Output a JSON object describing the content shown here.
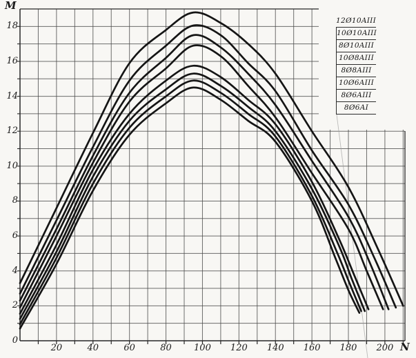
{
  "figure": {
    "paper_color": "#f8f7f4",
    "ink_color": "#151515",
    "grid_color": "#4a4a4a",
    "border_color": "#262626"
  },
  "chart_data": {
    "type": "line",
    "title": "",
    "xlabel": "N",
    "ylabel": "M",
    "xlim": [
      0,
      211
    ],
    "ylim": [
      0,
      19
    ],
    "x_tick_labels": [
      20,
      40,
      60,
      80,
      100,
      120,
      140,
      160,
      180,
      200
    ],
    "y_tick_labels": [
      0,
      2,
      4,
      6,
      8,
      10,
      12,
      14,
      16,
      18
    ],
    "x_minor_step": 10,
    "y_minor_step": 1,
    "grid": true,
    "legend_position": "top-right",
    "series": [
      {
        "name": "12Ø10AIII",
        "points": [
          [
            0,
            3.3
          ],
          [
            20,
            7.6
          ],
          [
            40,
            11.9
          ],
          [
            60,
            15.9
          ],
          [
            80,
            17.8
          ],
          [
            95,
            18.8
          ],
          [
            110,
            18.2
          ],
          [
            125,
            17.0
          ],
          [
            140,
            15.3
          ],
          [
            160,
            12.0
          ],
          [
            180,
            8.8
          ],
          [
            196,
            5.3
          ],
          [
            210,
            2.0
          ]
        ]
      },
      {
        "name": "10Ø10AIII",
        "points": [
          [
            0,
            2.7
          ],
          [
            20,
            6.9
          ],
          [
            40,
            11.1
          ],
          [
            60,
            14.9
          ],
          [
            80,
            16.9
          ],
          [
            95,
            18.05
          ],
          [
            110,
            17.5
          ],
          [
            125,
            15.9
          ],
          [
            140,
            14.3
          ],
          [
            160,
            10.9
          ],
          [
            180,
            7.8
          ],
          [
            194,
            4.8
          ],
          [
            206,
            1.9
          ]
        ]
      },
      {
        "name": "8Ø10AIII",
        "points": [
          [
            0,
            2.3
          ],
          [
            20,
            6.4
          ],
          [
            40,
            10.6
          ],
          [
            60,
            14.2
          ],
          [
            80,
            16.2
          ],
          [
            95,
            17.5
          ],
          [
            110,
            16.8
          ],
          [
            125,
            15.3
          ],
          [
            140,
            13.5
          ],
          [
            160,
            10.3
          ],
          [
            180,
            7.1
          ],
          [
            192,
            4.4
          ],
          [
            202,
            1.8
          ]
        ]
      },
      {
        "name": "10Ø8AIII",
        "points": [
          [
            0,
            1.9
          ],
          [
            20,
            6.0
          ],
          [
            40,
            10.2
          ],
          [
            60,
            13.7
          ],
          [
            80,
            15.6
          ],
          [
            95,
            16.9
          ],
          [
            110,
            16.3
          ],
          [
            125,
            14.6
          ],
          [
            140,
            12.8
          ],
          [
            160,
            9.6
          ],
          [
            180,
            6.4
          ],
          [
            190,
            4.0
          ],
          [
            199,
            1.8
          ]
        ]
      },
      {
        "name": "8Ø8AIII",
        "points": [
          [
            0,
            1.55
          ],
          [
            20,
            5.5
          ],
          [
            40,
            9.8
          ],
          [
            60,
            13.0
          ],
          [
            80,
            14.9
          ],
          [
            95,
            15.75
          ],
          [
            110,
            15.1
          ],
          [
            125,
            13.8
          ],
          [
            140,
            12.4
          ],
          [
            160,
            9.1
          ],
          [
            175,
            5.8
          ],
          [
            183,
            3.8
          ],
          [
            191,
            1.8
          ]
        ]
      },
      {
        "name": "10Ø6AIII",
        "points": [
          [
            0,
            1.25
          ],
          [
            20,
            5.1
          ],
          [
            40,
            9.4
          ],
          [
            60,
            12.6
          ],
          [
            80,
            14.4
          ],
          [
            95,
            15.3
          ],
          [
            110,
            14.6
          ],
          [
            125,
            13.4
          ],
          [
            140,
            12.0
          ],
          [
            160,
            8.7
          ],
          [
            175,
            5.4
          ],
          [
            182,
            3.5
          ],
          [
            189,
            1.7
          ]
        ]
      },
      {
        "name": "8Ø6AIII",
        "points": [
          [
            0,
            0.95
          ],
          [
            20,
            4.75
          ],
          [
            40,
            9.0
          ],
          [
            60,
            12.2
          ],
          [
            80,
            14.0
          ],
          [
            95,
            14.9
          ],
          [
            110,
            14.2
          ],
          [
            125,
            13.0
          ],
          [
            140,
            11.7
          ],
          [
            160,
            8.3
          ],
          [
            174,
            5.0
          ],
          [
            181,
            3.2
          ],
          [
            187,
            1.7
          ]
        ]
      },
      {
        "name": "8Ø6AI",
        "points": [
          [
            0,
            0.7
          ],
          [
            20,
            4.4
          ],
          [
            40,
            8.6
          ],
          [
            60,
            11.8
          ],
          [
            80,
            13.6
          ],
          [
            95,
            14.5
          ],
          [
            110,
            13.8
          ],
          [
            125,
            12.6
          ],
          [
            140,
            11.4
          ],
          [
            160,
            8.0
          ],
          [
            173,
            4.7
          ],
          [
            180,
            2.9
          ],
          [
            186,
            1.6
          ]
        ]
      }
    ]
  }
}
